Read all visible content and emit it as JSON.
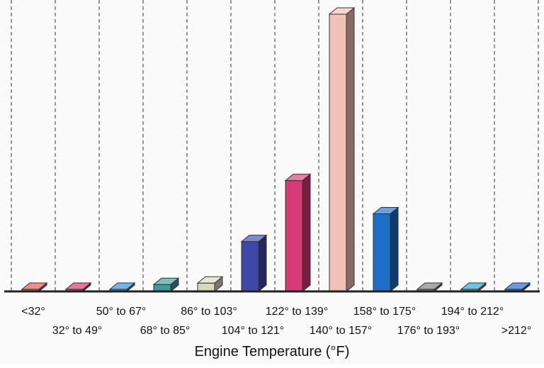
{
  "chart_data": {
    "type": "bar",
    "title": "",
    "xlabel": "Engine Temperature (°F)",
    "ylabel": "",
    "categories": [
      "<32°",
      "32° to 49°",
      "50° to 67°",
      "68° to 85°",
      "86° to 103°",
      "104° to 121°",
      "122° to 139°",
      "140° to 157°",
      "158° to 175°",
      "176° to 193°",
      "194° to 212°",
      ">212°"
    ],
    "values": [
      0,
      0,
      0,
      2.5,
      3,
      18,
      40,
      100,
      28,
      0,
      0,
      0
    ],
    "ylim": [
      0,
      100
    ],
    "grid": "vertical dashed",
    "legend": "none",
    "colors": [
      "#d9534f",
      "#cc3366",
      "#2b8fd6",
      "#3d9b9b",
      "#d8d8c0",
      "#3f48a8",
      "#d63a74",
      "#f1c3b6",
      "#1f6fc8",
      "#7a7a7a",
      "#2ba0c8",
      "#1f63c8"
    ]
  }
}
